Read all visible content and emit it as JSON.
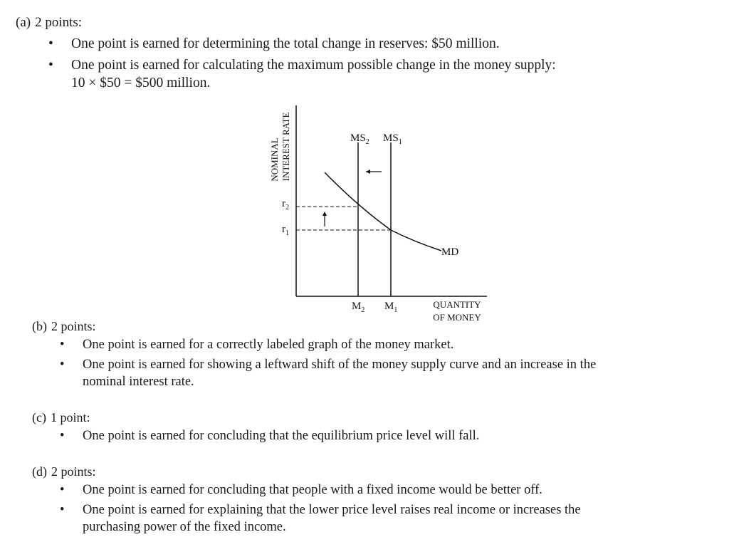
{
  "a": {
    "letter": "(a)",
    "points": "2 points:",
    "bullets": [
      "One point is earned for determining the total change in reserves: $50 million.",
      "One point is earned for calculating the maximum possible change in the money supply:",
      "10 × $50 = $500 million."
    ]
  },
  "graph": {
    "y_axis_label_line1": "NOMINAL",
    "y_axis_label_line2": "INTEREST RATE",
    "x_axis_label_line1": "QUANTITY",
    "x_axis_label_line2": "OF MONEY",
    "ms2_label": "MS",
    "ms2_sub": "2",
    "ms1_label": "MS",
    "ms1_sub": "1",
    "md_label": "MD",
    "r2_label": "r",
    "r2_sub": "2",
    "r1_label": "r",
    "r1_sub": "1",
    "m2_label": "M",
    "m2_sub": "2",
    "m1_label": "M",
    "m1_sub": "1"
  },
  "b": {
    "letter": "(b)",
    "points": "2 points:",
    "bullets": [
      "One point is earned for a correctly labeled graph of the money market.",
      "One point is earned for showing a leftward shift of the money supply curve and an increase in the",
      "nominal interest rate."
    ]
  },
  "c": {
    "letter": "(c)",
    "points": "1 point:",
    "bullets": [
      "One point is earned for concluding that the equilibrium price level will fall."
    ]
  },
  "d": {
    "letter": "(d)",
    "points": "2 points:",
    "bullets": [
      "One point is earned for concluding that people with a fixed income would be better off.",
      "One point is earned for explaining that the lower price level raises real income or increases the",
      "purchasing power of the fixed income."
    ]
  }
}
